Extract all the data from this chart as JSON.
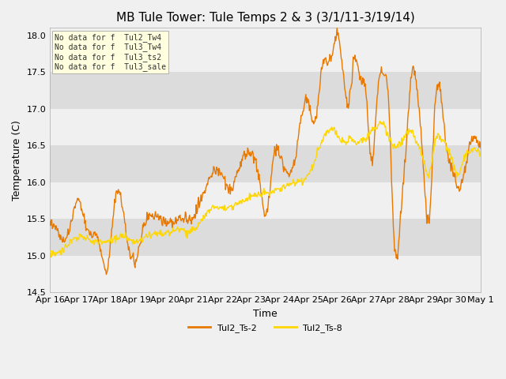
{
  "title": "MB Tule Tower: Tule Temps 2 & 3 (3/1/11-3/19/14)",
  "ylabel": "Temperature (C)",
  "xlabel": "Time",
  "ylim": [
    14.5,
    18.1
  ],
  "xlim": [
    0,
    15.0
  ],
  "color_ts2": "#E87800",
  "color_ts8": "#FFD700",
  "background_color": "#f0f0f0",
  "plot_bg_color": "#f0f0f0",
  "band_light": "#f0f0f0",
  "band_dark": "#dcdcdc",
  "annotations": [
    "No data for f  Tul2_Tw4",
    "No data for f  Tul3_Tw4",
    "No data for f  Tul3_ts2",
    "No data for f  Tul3_sale"
  ],
  "xtick_labels": [
    "Apr 16",
    "Apr 17",
    "Apr 18",
    "Apr 19",
    "Apr 20",
    "Apr 21",
    "Apr 22",
    "Apr 23",
    "Apr 24",
    "Apr 25",
    "Apr 26",
    "Apr 27",
    "Apr 28",
    "Apr 29",
    "Apr 30",
    "May 1"
  ],
  "legend_labels": [
    "Tul2_Ts-2",
    "Tul2_Ts-8"
  ],
  "title_fontsize": 11,
  "axis_fontsize": 9,
  "tick_fontsize": 8
}
